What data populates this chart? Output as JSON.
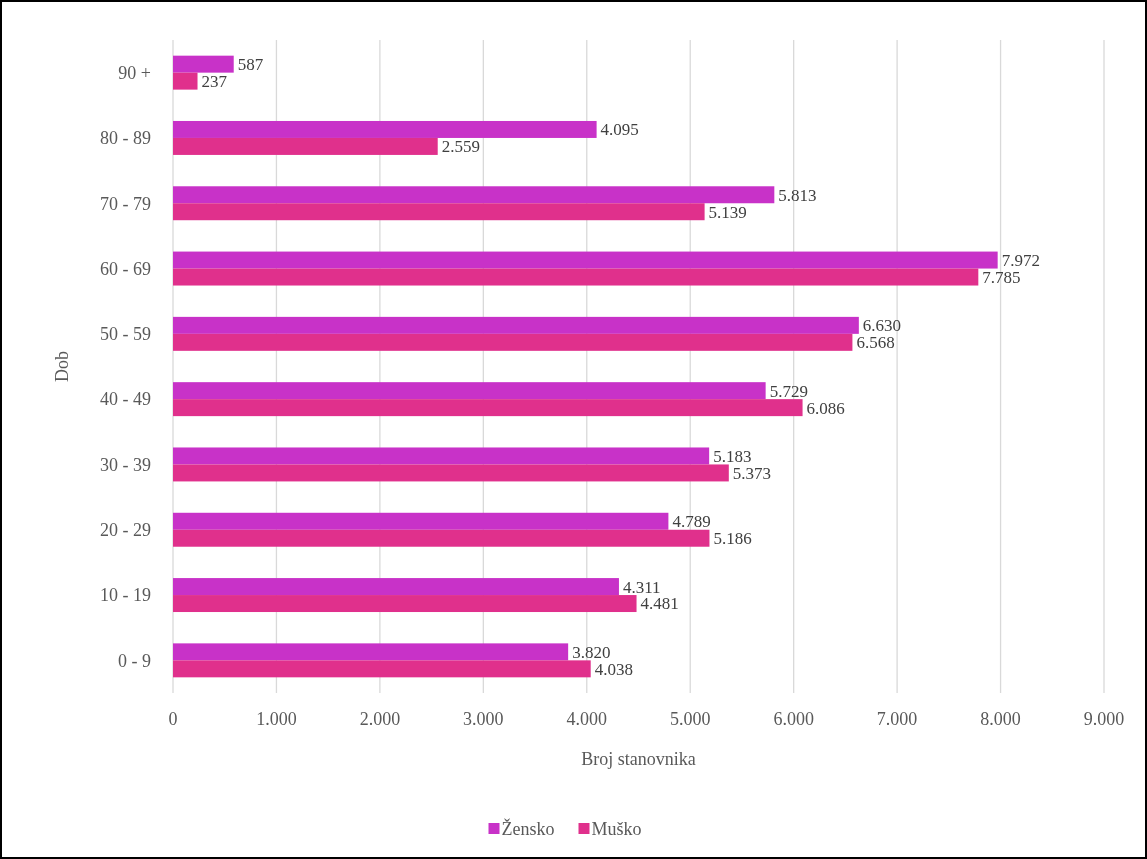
{
  "chart_data": {
    "type": "bar",
    "orientation": "horizontal",
    "xlabel": "Broj stanovnika",
    "ylabel": "Dob",
    "categories": [
      "90 +",
      "80 - 89",
      "70 - 79",
      "60 - 69",
      "50 - 59",
      "40 - 49",
      "30 - 39",
      "20 - 29",
      "10 - 19",
      "0 - 9"
    ],
    "series": [
      {
        "name": "Žensko",
        "color": "#c832c8",
        "values": [
          587,
          4095,
          5813,
          7972,
          6630,
          5729,
          5183,
          4789,
          4311,
          3820
        ],
        "value_labels": [
          "587",
          "4.095",
          "5.813",
          "7.972",
          "6.630",
          "5.729",
          "5.183",
          "4.789",
          "4.311",
          "3.820"
        ]
      },
      {
        "name": "Muško",
        "color": "#e0308c",
        "values": [
          237,
          2559,
          5139,
          7785,
          6568,
          6086,
          5373,
          5186,
          4481,
          4038
        ],
        "value_labels": [
          "237",
          "2.559",
          "5.139",
          "7.785",
          "6.568",
          "6.086",
          "5.373",
          "5.186",
          "4.481",
          "4.038"
        ]
      }
    ],
    "xlim": [
      0,
      9000
    ],
    "xticks": [
      0,
      {
        "value": 1000,
        "label": "1.000"
      },
      {
        "value": 2000,
        "label": "2.000"
      },
      {
        "value": 3000,
        "label": "3.000"
      },
      {
        "value": 4000,
        "label": "4.000"
      },
      {
        "value": 5000,
        "label": "5.000"
      },
      {
        "value": 6000,
        "label": "6.000"
      },
      {
        "value": 7000,
        "label": "7.000"
      },
      {
        "value": 8000,
        "label": "8.000"
      },
      {
        "value": 9000,
        "label": "9.000"
      }
    ],
    "grid": "x",
    "legend": "bottom"
  }
}
